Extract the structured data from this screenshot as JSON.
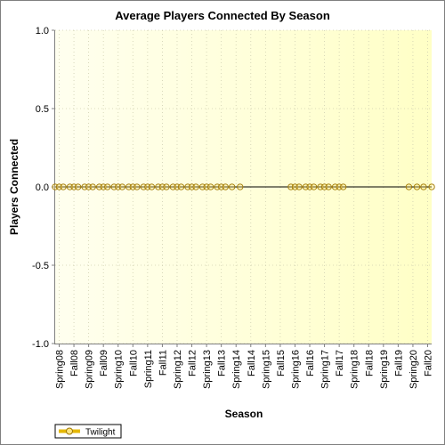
{
  "chart_data": {
    "type": "line",
    "title": "Average Players Connected By Season",
    "xlabel": "Season",
    "ylabel": "Players Connected",
    "ylim": [
      -1.0,
      1.0
    ],
    "yticks": [
      "1.0",
      "0.5",
      "0.0",
      "-0.5",
      "-1.0"
    ],
    "ytick_values": [
      1.0,
      0.5,
      0.0,
      -0.5,
      -1.0
    ],
    "categories": [
      "Spring08",
      "Fall08",
      "Spring09",
      "Fall09",
      "Spring10",
      "Fall10",
      "Spring11",
      "Fall11",
      "Spring12",
      "Fall12",
      "Spring13",
      "Fall13",
      "Spring14",
      "Fall14",
      "Spring15",
      "Fall15",
      "Spring16",
      "Fall16",
      "Spring17",
      "Fall17",
      "Spring18",
      "Fall18",
      "Spring19",
      "Fall19",
      "Spring20",
      "Fall20"
    ],
    "grid": true,
    "legend_position": "bottom-left",
    "series": [
      {
        "name": "Twilight",
        "color": "#e6b800",
        "marker_stroke": "#a07800",
        "x": [
          "Spring08",
          "Spring08",
          "Spring08",
          "Fall08",
          "Fall08",
          "Fall08",
          "Spring09",
          "Spring09",
          "Spring09",
          "Fall09",
          "Fall09",
          "Fall09",
          "Spring10",
          "Spring10",
          "Spring10",
          "Fall10",
          "Fall10",
          "Fall10",
          "Spring11",
          "Spring11",
          "Spring11",
          "Fall11",
          "Fall11",
          "Fall11",
          "Spring12",
          "Spring12",
          "Spring12",
          "Fall12",
          "Fall12",
          "Fall12",
          "Spring13",
          "Spring13",
          "Spring13",
          "Fall13",
          "Fall13",
          "Fall13",
          "Spring14",
          "Spring14",
          "Spring16",
          "Spring16",
          "Spring16",
          "Fall16",
          "Fall16",
          "Fall16",
          "Spring17",
          "Spring17",
          "Spring17",
          "Fall17",
          "Fall17",
          "Fall17",
          "Spring20",
          "Spring20",
          "Fall20",
          "Fall20"
        ],
        "y": [
          0,
          0,
          0,
          0,
          0,
          0,
          0,
          0,
          0,
          0,
          0,
          0,
          0,
          0,
          0,
          0,
          0,
          0,
          0,
          0,
          0,
          0,
          0,
          0,
          0,
          0,
          0,
          0,
          0,
          0,
          0,
          0,
          0,
          0,
          0,
          0,
          0,
          0,
          0,
          0,
          0,
          0,
          0,
          0,
          0,
          0,
          0,
          0,
          0,
          0,
          0,
          0,
          0,
          0
        ]
      }
    ]
  }
}
